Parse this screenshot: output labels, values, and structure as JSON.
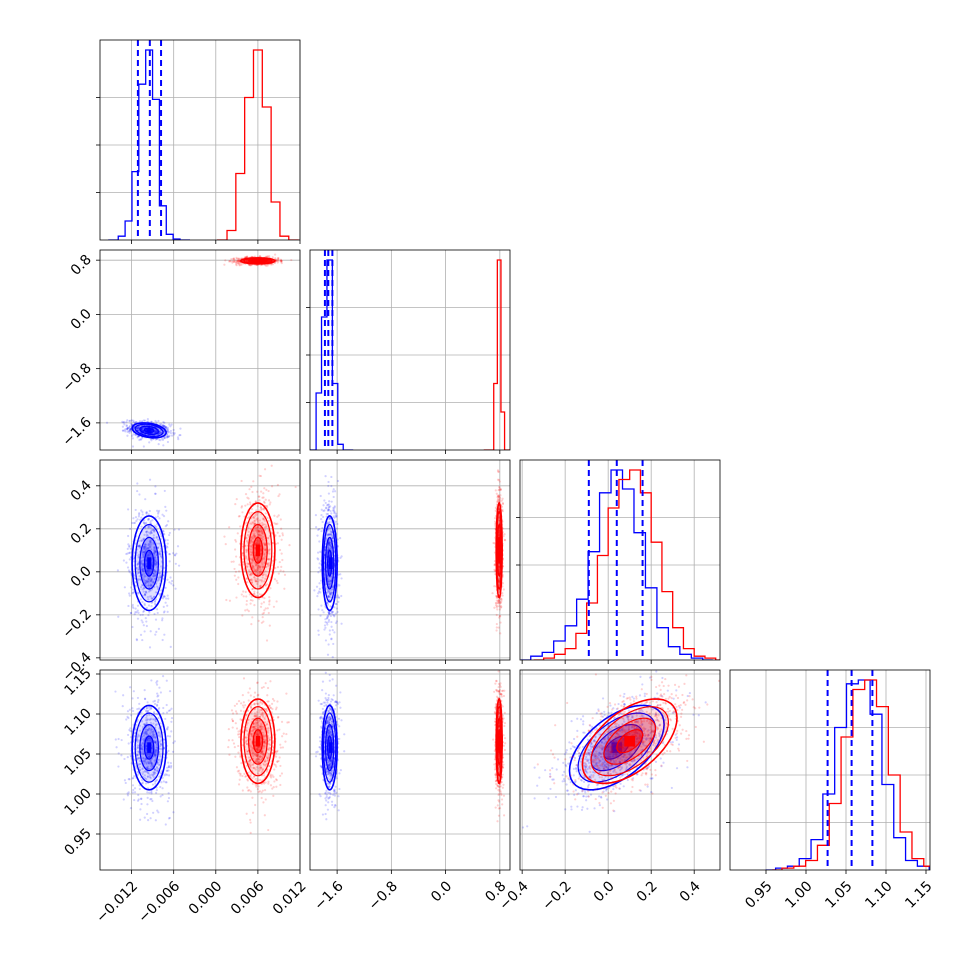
{
  "chart_data": {
    "type": "corner",
    "colors": {
      "a": "#0000ff",
      "b": "#ff0000"
    },
    "n_params": 4,
    "axis_ranges": [
      [
        -0.0165,
        0.012
      ],
      [
        -2.0,
        0.95
      ],
      [
        -0.41,
        0.52
      ],
      [
        0.905,
        1.155
      ]
    ],
    "tick_labels": [
      [
        "−0.012",
        "−0.006",
        "0.000",
        "0.006",
        "0.012"
      ],
      [
        "−1.6",
        "−0.8",
        "0.0",
        "0.8"
      ],
      [
        "−0.4",
        "−0.2",
        "0.0",
        "0.2",
        "0.4"
      ],
      [
        "0.95",
        "1.00",
        "1.05",
        "1.10",
        "1.15"
      ]
    ],
    "ticks": [
      [
        -0.012,
        -0.006,
        0.0,
        0.006,
        0.012
      ],
      [
        -1.6,
        -0.8,
        0.0,
        0.8
      ],
      [
        -0.4,
        -0.2,
        0.0,
        0.2,
        0.4
      ],
      [
        0.95,
        1.0,
        1.05,
        1.1,
        1.15
      ]
    ],
    "grid": true,
    "series": [
      {
        "color": "#0000ff",
        "means": [
          -0.0095,
          -1.71,
          0.04,
          1.058
        ],
        "sds": [
          0.0011,
          0.05,
          0.1,
          0.024
        ],
        "quantiles": [
          [
            -0.0111,
            -0.0094,
            -0.0078
          ],
          [
            -1.78,
            -1.73,
            -1.67
          ],
          [
            -0.09,
            0.04,
            0.16
          ],
          [
            1.027,
            1.057,
            1.083
          ]
        ],
        "hist_heights": [
          [
            0.02,
            0.1,
            0.36,
            0.82,
            1.0,
            0.74,
            0.18,
            0.03,
            0.005
          ],
          [
            0.3,
            0.7,
            1.0,
            0.35,
            0.03
          ],
          [
            0.02,
            0.04,
            0.1,
            0.18,
            0.32,
            0.57,
            0.88,
            1.0,
            0.9,
            0.67,
            0.38,
            0.17,
            0.07,
            0.03,
            0.01
          ],
          [
            0.01,
            0.02,
            0.06,
            0.16,
            0.4,
            0.75,
            0.98,
            1.0,
            0.82,
            0.45,
            0.17,
            0.05,
            0.02
          ]
        ],
        "correlations": {
          "2-3": 0.55
        }
      },
      {
        "color": "#ff0000",
        "means": [
          0.006,
          0.79,
          0.1,
          1.066
        ],
        "sds": [
          0.0011,
          0.02,
          0.1,
          0.024
        ],
        "hist_heights": [
          [
            0.05,
            0.35,
            0.75,
            1.0,
            0.7,
            0.2,
            0.02
          ],
          [
            0.35,
            1.0,
            0.2
          ],
          [
            0.01,
            0.03,
            0.06,
            0.14,
            0.3,
            0.55,
            0.8,
            0.95,
            1.0,
            0.88,
            0.62,
            0.36,
            0.17,
            0.06,
            0.02,
            0.01
          ],
          [
            0.01,
            0.02,
            0.05,
            0.13,
            0.35,
            0.7,
            0.95,
            1.0,
            0.86,
            0.5,
            0.2,
            0.06,
            0.02
          ]
        ],
        "correlations": {
          "2-3": 0.55
        }
      }
    ]
  }
}
